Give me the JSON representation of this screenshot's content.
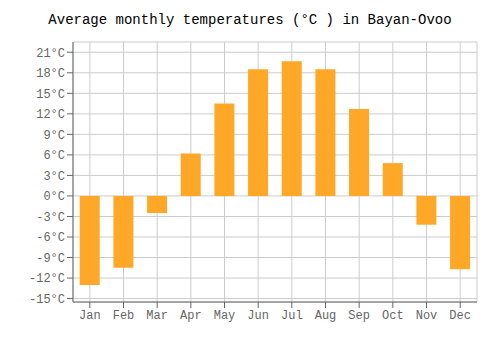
{
  "chart_data": {
    "type": "bar",
    "title": "Average monthly temperatures (°C ) in Bayan-Ovoo",
    "categories": [
      "Jan",
      "Feb",
      "Mar",
      "Apr",
      "May",
      "Jun",
      "Jul",
      "Aug",
      "Sep",
      "Oct",
      "Nov",
      "Dec"
    ],
    "values": [
      -13,
      -10.5,
      -2.5,
      6.2,
      13.5,
      18.5,
      19.7,
      18.5,
      12.7,
      4.8,
      -4.2,
      -10.7
    ],
    "color": "#FFA726",
    "ylim": [
      -15.5,
      22.5
    ],
    "yticks": [
      {
        "value": -15,
        "label": "-15°C"
      },
      {
        "value": -12,
        "label": "-12°C"
      },
      {
        "value": -9,
        "label": "-9°C"
      },
      {
        "value": -6,
        "label": "-6°C"
      },
      {
        "value": -3,
        "label": "-3°C"
      },
      {
        "value": 0,
        "label": "0°C"
      },
      {
        "value": 3,
        "label": "3°C"
      },
      {
        "value": 6,
        "label": "6°C"
      },
      {
        "value": 9,
        "label": "9°C"
      },
      {
        "value": 12,
        "label": "12°C"
      },
      {
        "value": 15,
        "label": "15°C"
      },
      {
        "value": 18,
        "label": "18°C"
      },
      {
        "value": 21,
        "label": "21°C"
      }
    ],
    "grid": true
  }
}
